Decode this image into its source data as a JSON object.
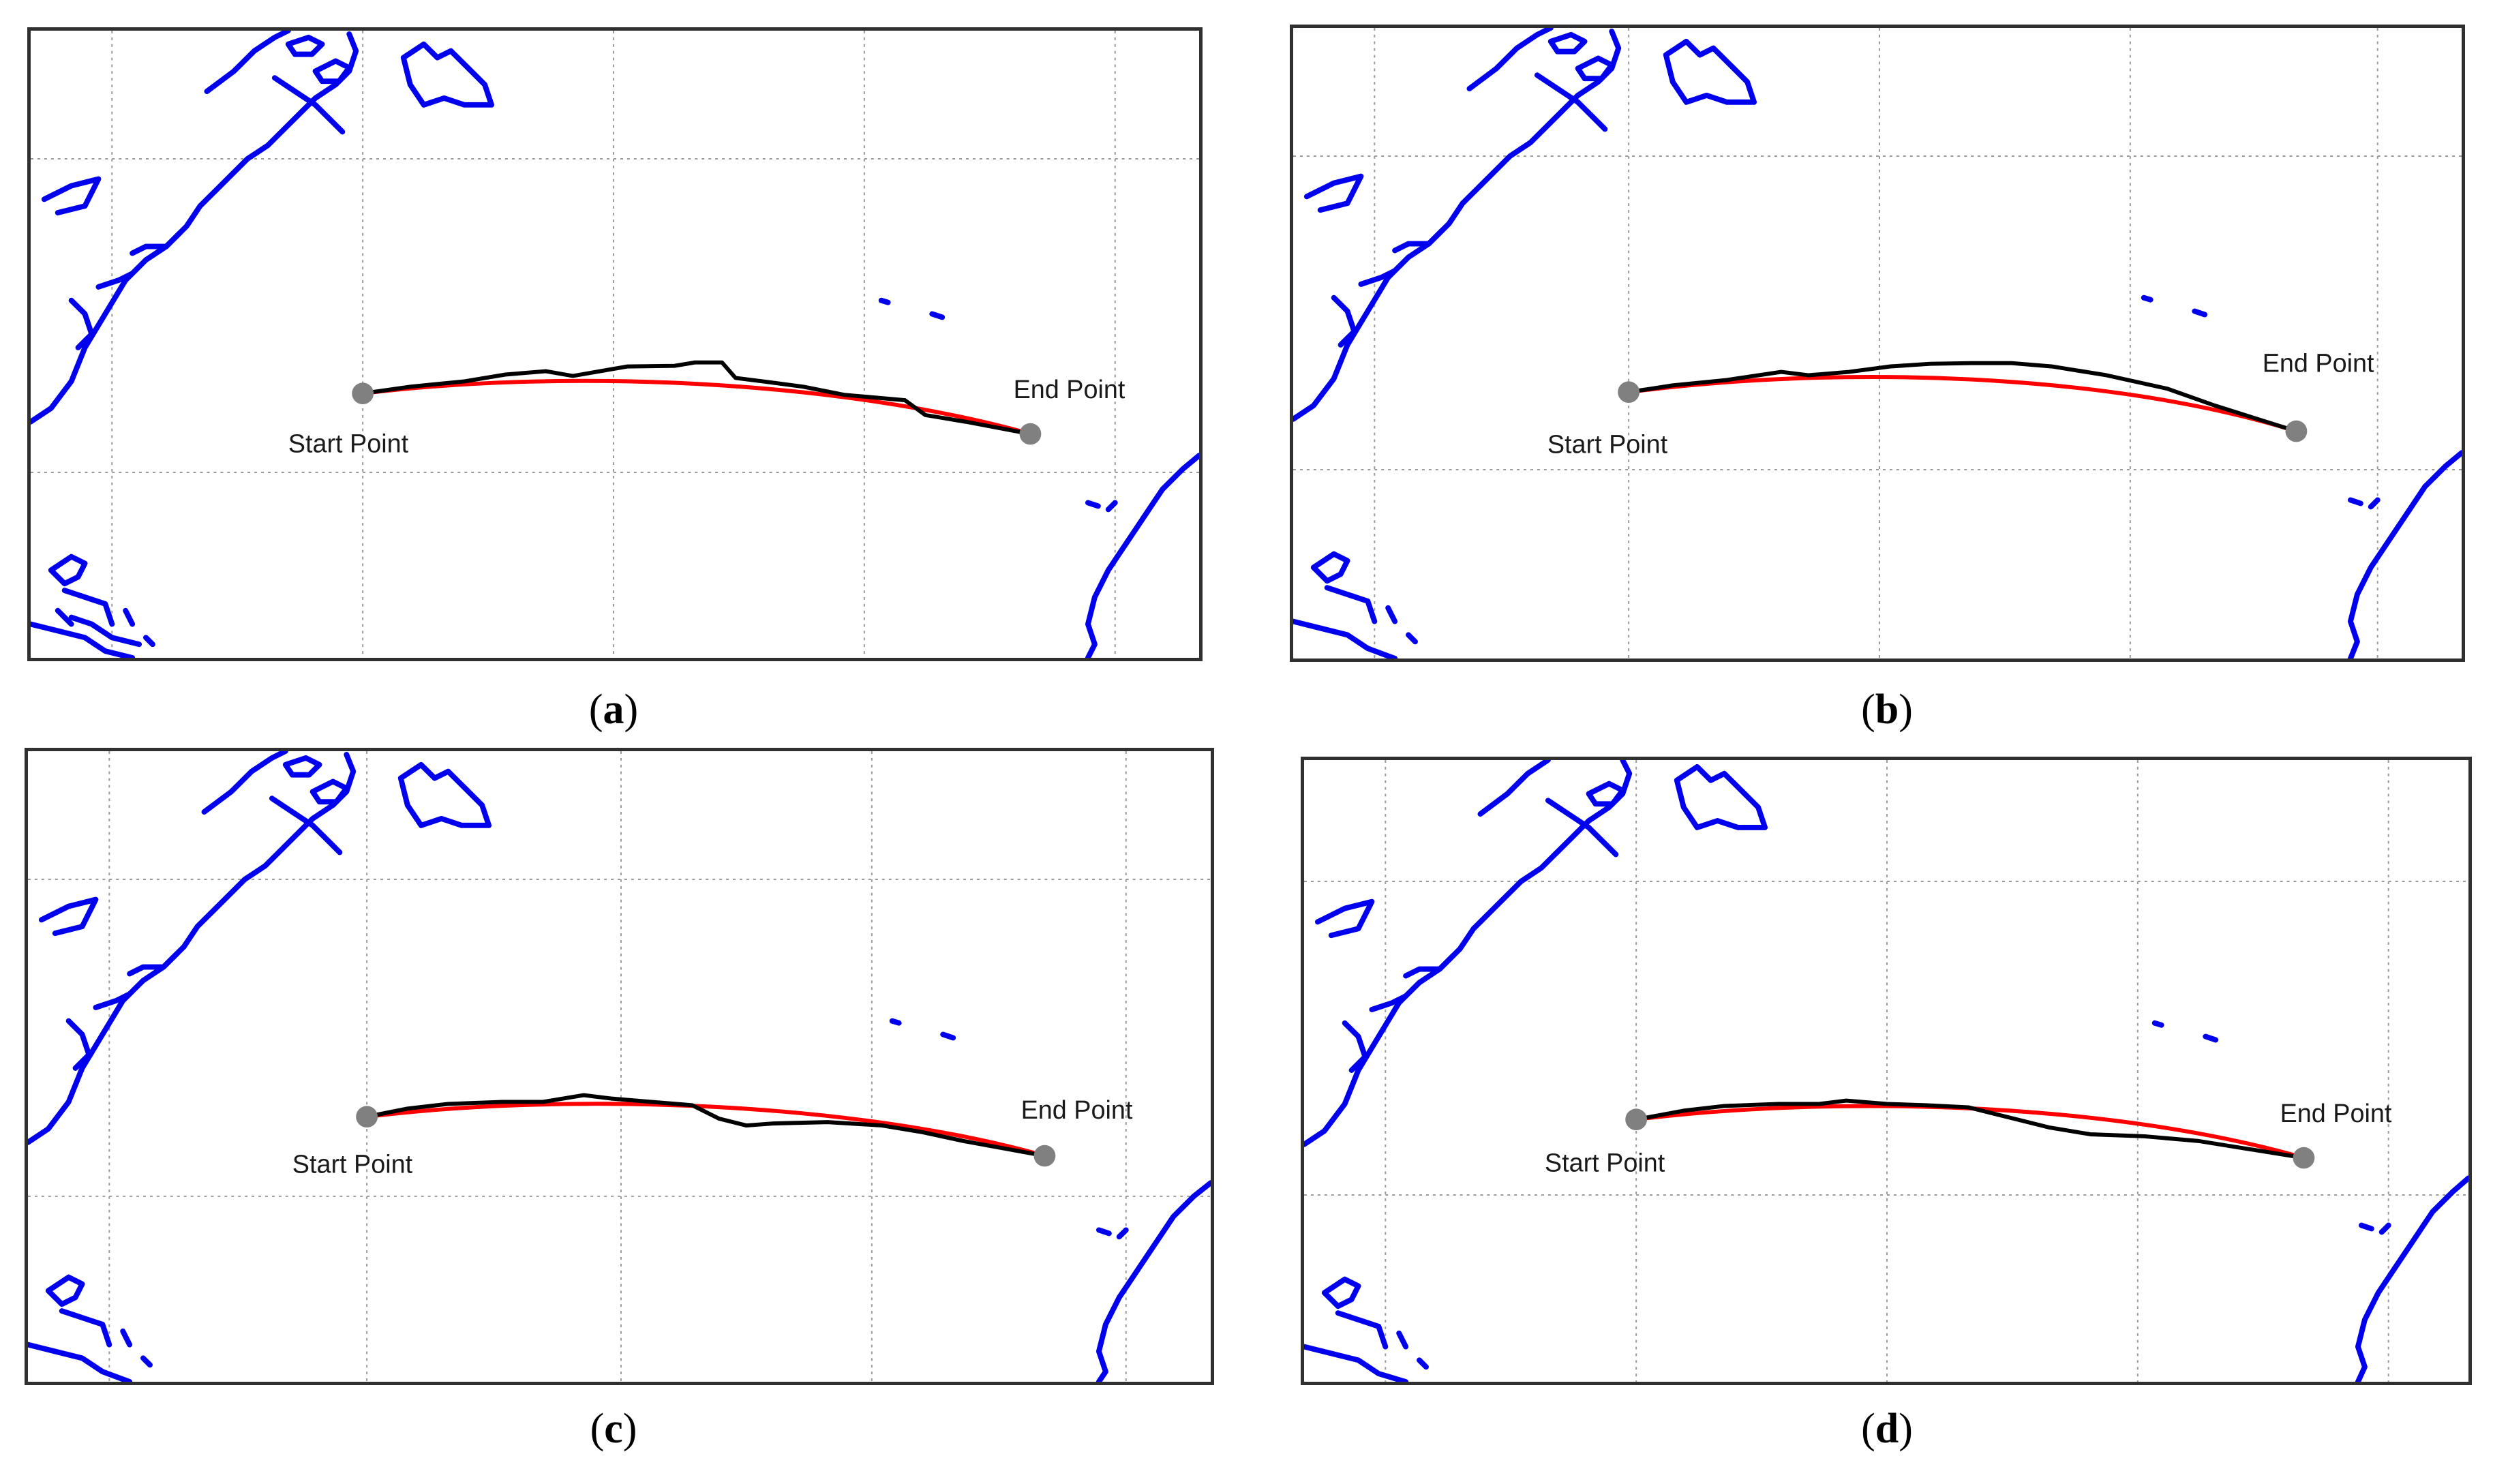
{
  "colors": {
    "coastline": "#0000ee",
    "planned_route": "#ff0000",
    "actual_track": "#000000",
    "waypoint": "#808080",
    "grid": "#9a9a9a",
    "frame": "#303030"
  },
  "labels": {
    "start": "Start Point",
    "end": "End Point"
  },
  "panels": [
    {
      "id": "a",
      "caption_letter": "a"
    },
    {
      "id": "b",
      "caption_letter": "b"
    },
    {
      "id": "c",
      "caption_letter": "c"
    },
    {
      "id": "d",
      "caption_letter": "d"
    }
  ]
}
